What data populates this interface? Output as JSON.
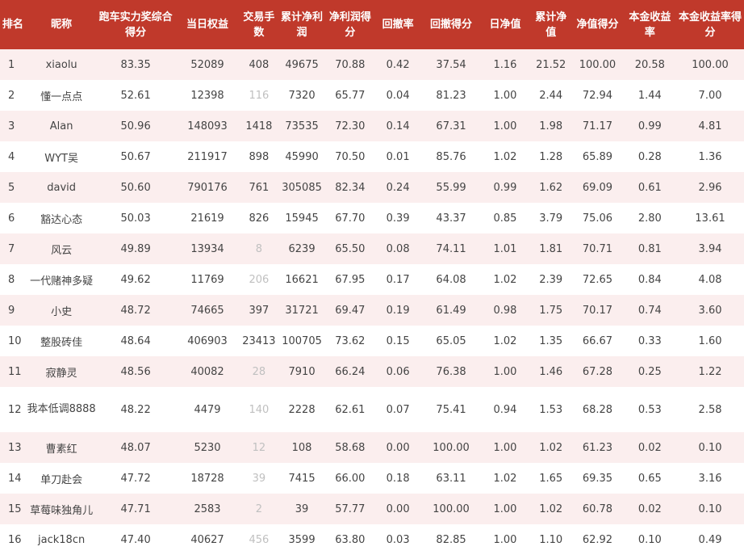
{
  "table": {
    "headers": [
      "排名",
      "昵称",
      "跑车实力奖综合得分",
      "当日权益",
      "交易手数",
      "累计净利润",
      "净利润得分",
      "回撤率",
      "回撤得分",
      "日净值",
      "累计净值",
      "净值得分",
      "本金收益率",
      "本金收益率得分"
    ],
    "rows": [
      [
        "1",
        "xiaolu",
        "83.35",
        "52089",
        "408",
        "49675",
        "70.88",
        "0.42",
        "37.54",
        "1.16",
        "21.52",
        "100.00",
        "20.58",
        "100.00"
      ],
      [
        "2",
        "懂一点点",
        "52.61",
        "12398",
        "116",
        "7320",
        "65.77",
        "0.04",
        "81.23",
        "1.00",
        "2.44",
        "72.94",
        "1.44",
        "7.00"
      ],
      [
        "3",
        "Alan",
        "50.96",
        "148093",
        "1418",
        "73535",
        "72.30",
        "0.14",
        "67.31",
        "1.00",
        "1.98",
        "71.17",
        "0.99",
        "4.81"
      ],
      [
        "4",
        "WYT吴",
        "50.67",
        "211917",
        "898",
        "45990",
        "70.50",
        "0.01",
        "85.76",
        "1.02",
        "1.28",
        "65.89",
        "0.28",
        "1.36"
      ],
      [
        "5",
        "david",
        "50.60",
        "790176",
        "761",
        "305085",
        "82.34",
        "0.24",
        "55.99",
        "0.99",
        "1.62",
        "69.09",
        "0.61",
        "2.96"
      ],
      [
        "6",
        "豁达心态",
        "50.03",
        "21619",
        "826",
        "15945",
        "67.70",
        "0.39",
        "43.37",
        "0.85",
        "3.79",
        "75.06",
        "2.80",
        "13.61"
      ],
      [
        "7",
        "风云",
        "49.89",
        "13934",
        "8",
        "6239",
        "65.50",
        "0.08",
        "74.11",
        "1.01",
        "1.81",
        "70.71",
        "0.81",
        "3.94"
      ],
      [
        "8",
        "一代赌神多疑",
        "49.62",
        "11769",
        "206",
        "16621",
        "67.95",
        "0.17",
        "64.08",
        "1.02",
        "2.39",
        "72.65",
        "0.84",
        "4.08"
      ],
      [
        "9",
        "小史",
        "48.72",
        "74665",
        "397",
        "31721",
        "69.47",
        "0.19",
        "61.49",
        "0.98",
        "1.75",
        "70.17",
        "0.74",
        "3.60"
      ],
      [
        "10",
        "整股砖佳",
        "48.64",
        "406903",
        "23413",
        "100705",
        "73.62",
        "0.15",
        "65.05",
        "1.02",
        "1.35",
        "66.67",
        "0.33",
        "1.60"
      ],
      [
        "11",
        "寂静灵",
        "48.56",
        "40082",
        "28",
        "7910",
        "66.24",
        "0.06",
        "76.38",
        "1.00",
        "1.46",
        "67.28",
        "0.25",
        "1.22"
      ],
      [
        "12",
        "我本低调8888",
        "48.22",
        "4479",
        "140",
        "2228",
        "62.61",
        "0.07",
        "75.41",
        "0.94",
        "1.53",
        "68.28",
        "0.53",
        "2.58"
      ],
      [
        "13",
        "曹素红",
        "48.07",
        "5230",
        "12",
        "108",
        "58.68",
        "0.00",
        "100.00",
        "1.00",
        "1.02",
        "61.23",
        "0.02",
        "0.10"
      ],
      [
        "14",
        "单刀赴会",
        "47.72",
        "18728",
        "39",
        "7415",
        "66.00",
        "0.18",
        "63.11",
        "1.02",
        "1.65",
        "69.35",
        "0.65",
        "3.16"
      ],
      [
        "15",
        "草莓味独角儿",
        "47.71",
        "2583",
        "2",
        "39",
        "57.77",
        "0.00",
        "100.00",
        "1.00",
        "1.02",
        "60.78",
        "0.02",
        "0.10"
      ],
      [
        "16",
        "jack18cn",
        "47.40",
        "40627",
        "456",
        "3599",
        "63.80",
        "0.03",
        "82.85",
        "1.00",
        "1.10",
        "62.92",
        "0.10",
        "0.49"
      ]
    ],
    "faded_trade_rows": [
      1,
      6,
      7,
      10,
      11,
      12,
      13,
      14,
      15
    ],
    "colors": {
      "header_bg": "#c0392b",
      "header_text": "#ffffff",
      "row_alt_bg": "#fbeeee",
      "row_bg": "#ffffff",
      "text": "#444444",
      "faded_text": "#c0c0c0"
    }
  }
}
